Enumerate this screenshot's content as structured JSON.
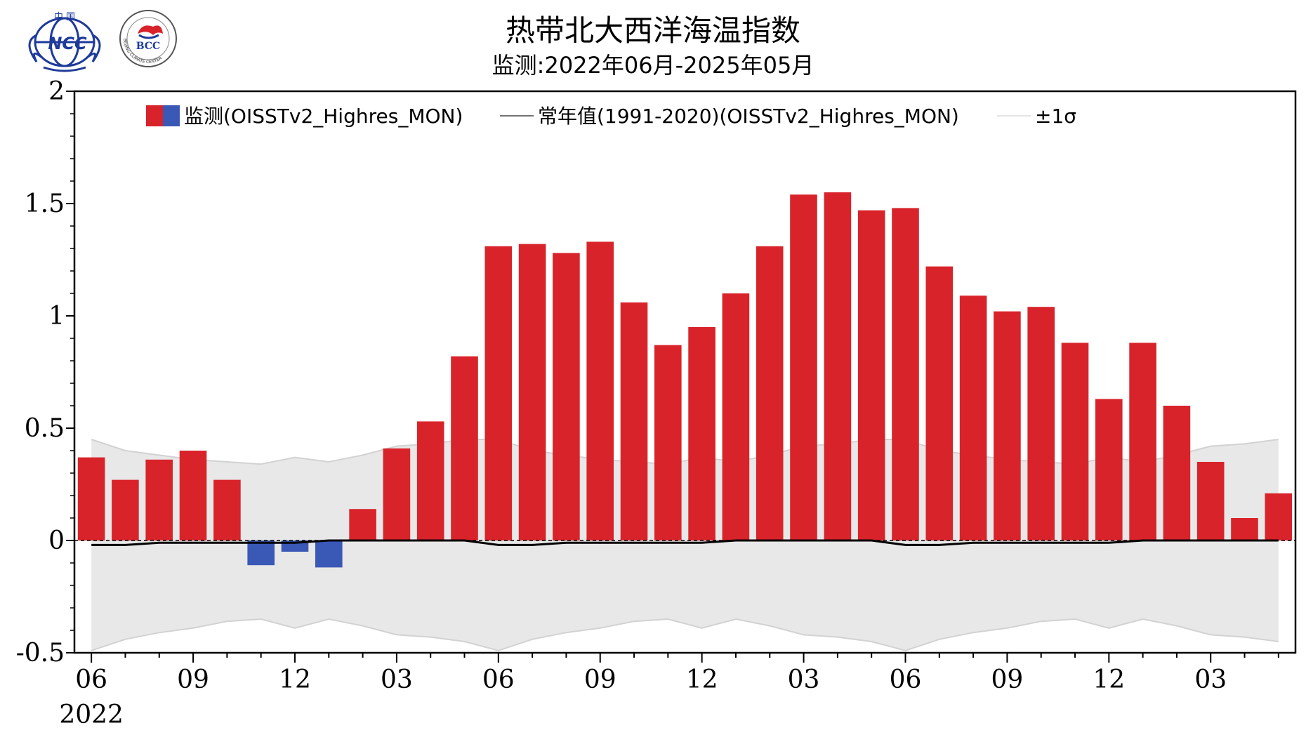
{
  "header": {
    "title": "热带北大西洋海温指数",
    "subtitle": "监测:2022年06月-2025年05月"
  },
  "logos": {
    "ncc_text": "NCC",
    "ncc_small": "中 国",
    "bcc_text": "BCC",
    "bcc_ring": "BEIJING CLIMATE CENTER"
  },
  "legend": {
    "monitor": "监测(OISSTv2_Highres_MON)",
    "normal": "常年值(1991-2020)(OISSTv2_Highres_MON)",
    "sigma": "±1σ"
  },
  "colors": {
    "positive": "#d9232a",
    "negative": "#3a58b6",
    "normal_line": "#000000",
    "band_fill": "#e8e8e8",
    "band_edge": "#d2d2d2"
  },
  "chart_data": {
    "type": "bar",
    "title": "热带北大西洋海温指数",
    "subtitle": "监测:2022年06月-2025年05月",
    "ylim": [
      -0.5,
      2
    ],
    "yticks": [
      -0.5,
      0,
      0.5,
      1,
      1.5,
      2
    ],
    "ytick_labels": [
      "-0.5",
      "0",
      "0.5",
      "1",
      "1.5",
      "2"
    ],
    "xtick_labels": [
      "06",
      "09",
      "12",
      "03",
      "06",
      "09",
      "12",
      "03",
      "06",
      "09",
      "12",
      "03"
    ],
    "xtick_index": [
      0,
      3,
      6,
      9,
      12,
      15,
      18,
      21,
      24,
      27,
      30,
      33
    ],
    "year_label": "2022",
    "months": [
      "2022-06",
      "2022-07",
      "2022-08",
      "2022-09",
      "2022-10",
      "2022-11",
      "2022-12",
      "2023-01",
      "2023-02",
      "2023-03",
      "2023-04",
      "2023-05",
      "2023-06",
      "2023-07",
      "2023-08",
      "2023-09",
      "2023-10",
      "2023-11",
      "2023-12",
      "2024-01",
      "2024-02",
      "2024-03",
      "2024-04",
      "2024-05",
      "2024-06",
      "2024-07",
      "2024-08",
      "2024-09",
      "2024-10",
      "2024-11",
      "2024-12",
      "2025-01",
      "2025-02",
      "2025-03",
      "2025-04",
      "2025-05"
    ],
    "series": [
      {
        "name": "监测(OISSTv2_Highres_MON)",
        "values": [
          0.37,
          0.27,
          0.36,
          0.4,
          0.27,
          -0.11,
          -0.05,
          -0.12,
          0.14,
          0.41,
          0.53,
          0.82,
          1.31,
          1.32,
          1.28,
          1.33,
          1.06,
          0.87,
          0.95,
          1.1,
          1.31,
          1.54,
          1.55,
          1.47,
          1.48,
          1.22,
          1.09,
          1.02,
          1.04,
          0.88,
          0.63,
          0.88,
          0.6,
          0.35,
          0.1,
          0.21
        ]
      },
      {
        "name": "常年值(1991-2020)(OISSTv2_Highres_MON)",
        "values": [
          -0.02,
          -0.02,
          -0.01,
          -0.01,
          -0.01,
          -0.01,
          -0.01,
          0.0,
          0.0,
          0.0,
          0.0,
          0.0,
          -0.02,
          -0.02,
          -0.01,
          -0.01,
          -0.01,
          -0.01,
          -0.01,
          0.0,
          0.0,
          0.0,
          0.0,
          0.0,
          -0.02,
          -0.02,
          -0.01,
          -0.01,
          -0.01,
          -0.01,
          -0.01,
          0.0,
          0.0,
          0.0,
          0.0,
          0.0
        ]
      },
      {
        "name": "±1σ",
        "upper": [
          0.45,
          0.4,
          0.38,
          0.36,
          0.35,
          0.34,
          0.37,
          0.35,
          0.38,
          0.42,
          0.43,
          0.45,
          0.45,
          0.4,
          0.38,
          0.36,
          0.35,
          0.34,
          0.37,
          0.35,
          0.38,
          0.42,
          0.43,
          0.45,
          0.45,
          0.4,
          0.38,
          0.36,
          0.35,
          0.34,
          0.37,
          0.35,
          0.38,
          0.42,
          0.43,
          0.45
        ],
        "lower": [
          -0.49,
          -0.44,
          -0.41,
          -0.39,
          -0.36,
          -0.35,
          -0.39,
          -0.35,
          -0.38,
          -0.42,
          -0.43,
          -0.45,
          -0.49,
          -0.44,
          -0.41,
          -0.39,
          -0.36,
          -0.35,
          -0.39,
          -0.35,
          -0.38,
          -0.42,
          -0.43,
          -0.45,
          -0.49,
          -0.44,
          -0.41,
          -0.39,
          -0.36,
          -0.35,
          -0.39,
          -0.35,
          -0.38,
          -0.42,
          -0.43,
          -0.45
        ]
      }
    ],
    "grid": false,
    "legend_position": "top"
  }
}
